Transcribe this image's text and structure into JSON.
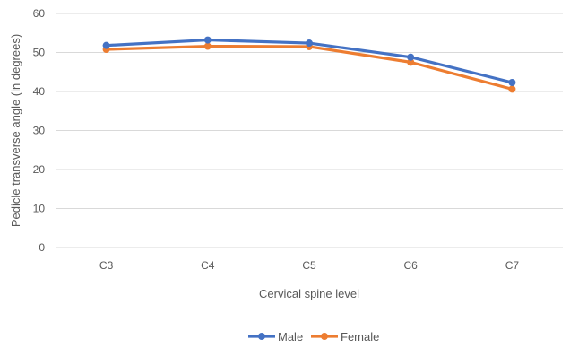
{
  "chart_data": {
    "type": "line",
    "categories": [
      "C3",
      "C4",
      "C5",
      "C6",
      "C7"
    ],
    "series": [
      {
        "name": "Male",
        "values": [
          51.8,
          53.2,
          52.4,
          48.8,
          42.3
        ],
        "color": "#4472C4"
      },
      {
        "name": "Female",
        "values": [
          50.8,
          51.6,
          51.5,
          47.5,
          40.6
        ],
        "color": "#ED7D31"
      }
    ],
    "title": "",
    "xlabel": "Cervical spine level",
    "ylabel": "Pedicle transverse angle (in degrees)",
    "ylim": [
      0,
      60
    ],
    "yticks": [
      0,
      10,
      20,
      30,
      40,
      50,
      60
    ],
    "grid": true,
    "legend": "bottom"
  }
}
